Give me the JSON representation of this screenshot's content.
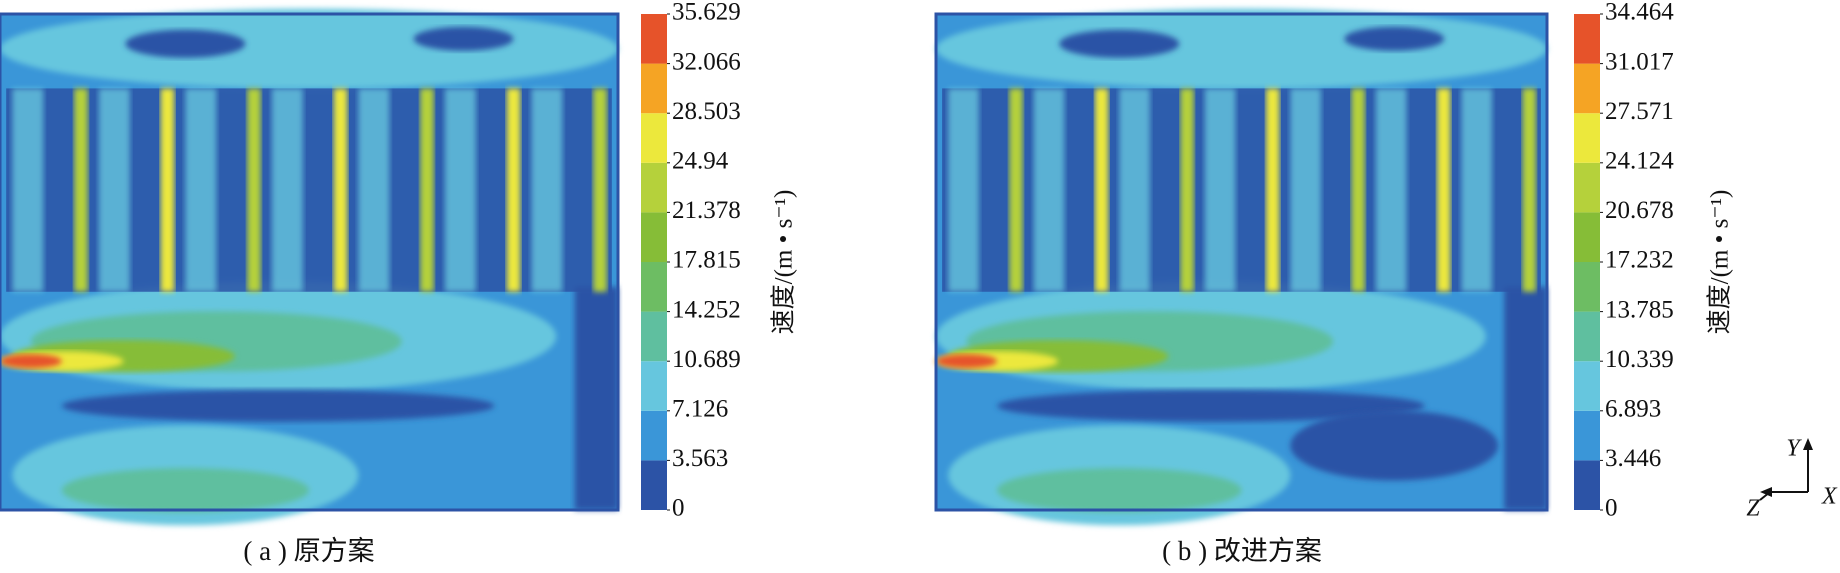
{
  "panels": [
    {
      "caption": "( a ) 原方案",
      "colorbar": {
        "label": "速度/(m • s⁻¹)",
        "ticks": [
          0,
          3.563,
          7.126,
          10.689,
          14.252,
          17.815,
          21.378,
          24.94,
          {
            "value": 24.94,
            "label": "24.940"
          },
          28.503,
          32.066,
          35.629
        ]
      }
    },
    {
      "caption": "( b ) 改进方案",
      "colorbar": {
        "label": "速度/(m • s⁻¹)",
        "ticks": [
          0,
          3.446,
          6.893,
          10.339,
          13.785,
          17.232,
          20.678,
          24.124,
          27.571,
          31.017,
          34.464
        ]
      }
    }
  ],
  "colors": [
    "#2c53a6",
    "#3a96d8",
    "#66c6de",
    "#5fbf9f",
    "#6dbd63",
    "#86bd37",
    "#b5d13b",
    "#ece83c",
    "#f5a424",
    "#e6532a"
  ],
  "axes": {
    "y": "Y",
    "x": "X",
    "z": "Z"
  }
}
